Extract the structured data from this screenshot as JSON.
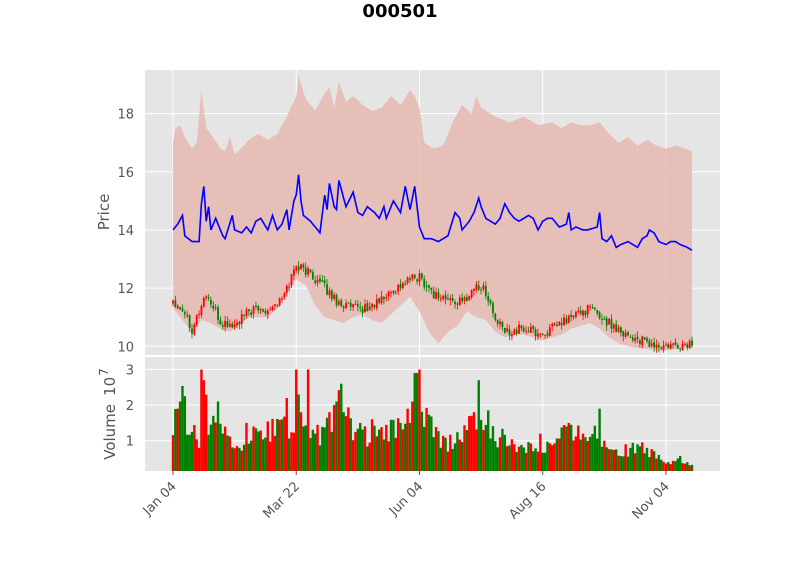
{
  "chart_data": {
    "type": "candlestick",
    "title": "000501",
    "xlabel": "",
    "price_panel": {
      "ylabel": "Price",
      "ylim": [
        9.7,
        19.5
      ],
      "yticks": [
        "10",
        "12",
        "14",
        "16",
        "18"
      ],
      "grid": true
    },
    "volume_panel": {
      "ylabel": "Volume",
      "scale_label": "10",
      "scale_exponent": "7",
      "ylim": [
        0.15,
        3.35
      ],
      "yticks": [
        "1",
        "2",
        "3"
      ],
      "grid": true
    },
    "x_tick_labels": [
      "Jan 04",
      "Mar 22",
      "Jun 04",
      "Aug 16",
      "Nov 04"
    ],
    "x_tick_index": [
      0,
      52,
      104,
      156,
      208
    ],
    "colors": {
      "up": "#ff0000",
      "down": "#008000",
      "line": "#0000ff",
      "band": "#e8b9b1",
      "axes_bg": "#e5e5e5",
      "grid": "#ffffff"
    },
    "price_anchors": [
      [
        0,
        11.6
      ],
      [
        5,
        11.2
      ],
      [
        8,
        10.6
      ],
      [
        14,
        11.8
      ],
      [
        20,
        10.8
      ],
      [
        26,
        10.7
      ],
      [
        32,
        11.2
      ],
      [
        40,
        11.3
      ],
      [
        46,
        11.6
      ],
      [
        52,
        12.8
      ],
      [
        58,
        12.5
      ],
      [
        64,
        12.0
      ],
      [
        70,
        11.5
      ],
      [
        76,
        11.3
      ],
      [
        82,
        11.3
      ],
      [
        88,
        11.6
      ],
      [
        94,
        12.0
      ],
      [
        100,
        12.3
      ],
      [
        104,
        12.4
      ],
      [
        110,
        11.8
      ],
      [
        116,
        11.6
      ],
      [
        122,
        11.5
      ],
      [
        128,
        12.1
      ],
      [
        132,
        11.9
      ],
      [
        136,
        10.9
      ],
      [
        140,
        10.5
      ],
      [
        148,
        10.6
      ],
      [
        156,
        10.4
      ],
      [
        164,
        10.8
      ],
      [
        170,
        11.1
      ],
      [
        176,
        11.3
      ],
      [
        182,
        10.9
      ],
      [
        188,
        10.6
      ],
      [
        194,
        10.3
      ],
      [
        200,
        10.1
      ],
      [
        206,
        9.95
      ],
      [
        214,
        10.0
      ],
      [
        219,
        10.1
      ]
    ],
    "volume_anchors": [
      [
        0,
        1.5
      ],
      [
        4,
        2.0
      ],
      [
        8,
        1.3
      ],
      [
        11,
        1.0
      ],
      [
        13,
        2.7
      ],
      [
        15,
        1.5
      ],
      [
        20,
        1.2
      ],
      [
        26,
        0.9
      ],
      [
        34,
        1.1
      ],
      [
        40,
        1.2
      ],
      [
        46,
        1.6
      ],
      [
        50,
        1.0
      ],
      [
        52,
        2.2
      ],
      [
        56,
        1.3
      ],
      [
        62,
        1.1
      ],
      [
        66,
        1.4
      ],
      [
        70,
        1.9
      ],
      [
        74,
        1.5
      ],
      [
        80,
        1.1
      ],
      [
        88,
        1.1
      ],
      [
        94,
        1.3
      ],
      [
        100,
        1.7
      ],
      [
        104,
        2.0
      ],
      [
        110,
        1.2
      ],
      [
        116,
        0.9
      ],
      [
        122,
        1.1
      ],
      [
        128,
        1.5
      ],
      [
        132,
        1.7
      ],
      [
        136,
        1.2
      ],
      [
        142,
        0.9
      ],
      [
        150,
        0.9
      ],
      [
        156,
        0.8
      ],
      [
        162,
        1.0
      ],
      [
        166,
        1.3
      ],
      [
        170,
        1.1
      ],
      [
        176,
        1.4
      ],
      [
        182,
        0.9
      ],
      [
        190,
        0.7
      ],
      [
        196,
        0.8
      ],
      [
        202,
        0.6
      ],
      [
        208,
        0.5
      ],
      [
        214,
        0.45
      ],
      [
        219,
        0.4
      ]
    ],
    "volume_spikes": [
      [
        2,
        1.9
      ],
      [
        3,
        2.1
      ],
      [
        12,
        3.0
      ],
      [
        13,
        2.7
      ],
      [
        19,
        2.1
      ],
      [
        21,
        1.2
      ],
      [
        31,
        1.5
      ],
      [
        46,
        1.6
      ],
      [
        48,
        2.2
      ],
      [
        52,
        3.0
      ],
      [
        53,
        2.3
      ],
      [
        54,
        1.8
      ],
      [
        55,
        1.4
      ],
      [
        57,
        3.0
      ],
      [
        60,
        1.2
      ],
      [
        68,
        2.0
      ],
      [
        69,
        2.1
      ],
      [
        71,
        2.6
      ],
      [
        72,
        1.8
      ],
      [
        79,
        1.5
      ],
      [
        84,
        1.6
      ],
      [
        96,
        1.5
      ],
      [
        99,
        1.9
      ],
      [
        101,
        2.1
      ],
      [
        102,
        2.9
      ],
      [
        103,
        2.9
      ],
      [
        104,
        3.0
      ],
      [
        110,
        1.1
      ],
      [
        124,
        1.3
      ],
      [
        126,
        1.7
      ],
      [
        127,
        1.8
      ],
      [
        129,
        2.7
      ],
      [
        131,
        1.3
      ],
      [
        155,
        1.2
      ],
      [
        166,
        1.4
      ],
      [
        167,
        1.5
      ],
      [
        173,
        1.2
      ],
      [
        180,
        1.9
      ],
      [
        182,
        1.0
      ],
      [
        193,
        0.8
      ],
      [
        196,
        0.9
      ],
      [
        200,
        0.8
      ],
      [
        204,
        0.5
      ],
      [
        205,
        0.6
      ],
      [
        213,
        0.5
      ]
    ],
    "blue_line": {
      "anchors": [
        [
          0,
          14.0
        ],
        [
          2,
          14.2
        ],
        [
          4,
          14.5
        ],
        [
          5,
          13.8
        ],
        [
          8,
          13.6
        ],
        [
          11,
          13.6
        ],
        [
          12,
          14.9
        ],
        [
          13,
          15.5
        ],
        [
          14,
          14.3
        ],
        [
          15,
          14.8
        ],
        [
          16,
          14.0
        ],
        [
          18,
          14.4
        ],
        [
          21,
          13.8
        ],
        [
          22,
          13.7
        ],
        [
          25,
          14.5
        ],
        [
          26,
          14.0
        ],
        [
          29,
          13.9
        ],
        [
          31,
          14.1
        ],
        [
          33,
          13.9
        ],
        [
          35,
          14.3
        ],
        [
          37,
          14.4
        ],
        [
          40,
          14.0
        ],
        [
          42,
          14.5
        ],
        [
          44,
          14.0
        ],
        [
          46,
          14.2
        ],
        [
          48,
          14.7
        ],
        [
          49,
          14.0
        ],
        [
          51,
          15.0
        ],
        [
          52,
          15.2
        ],
        [
          53,
          15.9
        ],
        [
          54,
          15.0
        ],
        [
          55,
          14.5
        ],
        [
          58,
          14.3
        ],
        [
          62,
          13.9
        ],
        [
          64,
          15.2
        ],
        [
          65,
          14.7
        ],
        [
          66,
          15.6
        ],
        [
          68,
          14.8
        ],
        [
          69,
          14.7
        ],
        [
          70,
          15.7
        ],
        [
          72,
          15.1
        ],
        [
          73,
          14.8
        ],
        [
          76,
          15.3
        ],
        [
          78,
          14.6
        ],
        [
          80,
          14.5
        ],
        [
          82,
          14.8
        ],
        [
          85,
          14.6
        ],
        [
          87,
          14.4
        ],
        [
          89,
          14.8
        ],
        [
          90,
          14.4
        ],
        [
          93,
          15.0
        ],
        [
          96,
          14.6
        ],
        [
          98,
          15.5
        ],
        [
          100,
          14.7
        ],
        [
          102,
          15.5
        ],
        [
          104,
          14.1
        ],
        [
          106,
          13.7
        ],
        [
          109,
          13.7
        ],
        [
          112,
          13.6
        ],
        [
          116,
          13.8
        ],
        [
          119,
          14.6
        ],
        [
          121,
          14.4
        ],
        [
          122,
          14.0
        ],
        [
          125,
          14.3
        ],
        [
          127,
          14.6
        ],
        [
          129,
          15.1
        ],
        [
          130,
          14.8
        ],
        [
          132,
          14.4
        ],
        [
          134,
          14.3
        ],
        [
          136,
          14.2
        ],
        [
          138,
          14.4
        ],
        [
          140,
          14.9
        ],
        [
          142,
          14.6
        ],
        [
          144,
          14.4
        ],
        [
          146,
          14.3
        ],
        [
          150,
          14.5
        ],
        [
          152,
          14.4
        ],
        [
          154,
          14.0
        ],
        [
          156,
          14.3
        ],
        [
          158,
          14.4
        ],
        [
          160,
          14.4
        ],
        [
          163,
          14.1
        ],
        [
          166,
          14.2
        ],
        [
          167,
          14.6
        ],
        [
          168,
          14.0
        ],
        [
          170,
          14.1
        ],
        [
          173,
          14.0
        ],
        [
          175,
          14.0
        ],
        [
          179,
          14.1
        ],
        [
          180,
          14.6
        ],
        [
          181,
          13.7
        ],
        [
          183,
          13.6
        ],
        [
          185,
          13.8
        ],
        [
          187,
          13.4
        ],
        [
          189,
          13.5
        ],
        [
          192,
          13.6
        ],
        [
          194,
          13.5
        ],
        [
          196,
          13.4
        ],
        [
          198,
          13.7
        ],
        [
          200,
          13.8
        ],
        [
          201,
          14.0
        ],
        [
          203,
          13.9
        ],
        [
          205,
          13.6
        ],
        [
          208,
          13.5
        ],
        [
          210,
          13.6
        ],
        [
          212,
          13.6
        ],
        [
          214,
          13.5
        ],
        [
          217,
          13.4
        ],
        [
          219,
          13.3
        ]
      ]
    },
    "band": {
      "upper": [
        [
          0,
          17.0
        ],
        [
          1,
          17.5
        ],
        [
          3,
          17.6
        ],
        [
          5,
          17.2
        ],
        [
          8,
          16.8
        ],
        [
          10,
          17.0
        ],
        [
          12,
          18.8
        ],
        [
          14,
          17.5
        ],
        [
          16,
          17.3
        ],
        [
          20,
          16.8
        ],
        [
          22,
          16.7
        ],
        [
          24,
          17.2
        ],
        [
          26,
          16.6
        ],
        [
          30,
          16.9
        ],
        [
          32,
          17.1
        ],
        [
          36,
          17.3
        ],
        [
          40,
          17.1
        ],
        [
          44,
          17.3
        ],
        [
          48,
          17.9
        ],
        [
          52,
          18.6
        ],
        [
          53,
          19.3
        ],
        [
          56,
          18.5
        ],
        [
          60,
          18.1
        ],
        [
          64,
          18.7
        ],
        [
          66,
          18.9
        ],
        [
          68,
          18.2
        ],
        [
          70,
          19.1
        ],
        [
          73,
          18.4
        ],
        [
          76,
          18.6
        ],
        [
          80,
          18.3
        ],
        [
          84,
          18.1
        ],
        [
          88,
          18.2
        ],
        [
          92,
          18.6
        ],
        [
          96,
          18.3
        ],
        [
          100,
          18.8
        ],
        [
          102,
          18.6
        ],
        [
          104,
          18.2
        ],
        [
          106,
          17.0
        ],
        [
          110,
          16.8
        ],
        [
          114,
          16.9
        ],
        [
          118,
          17.7
        ],
        [
          122,
          18.3
        ],
        [
          126,
          18.0
        ],
        [
          128,
          18.6
        ],
        [
          130,
          18.2
        ],
        [
          136,
          17.9
        ],
        [
          142,
          17.7
        ],
        [
          148,
          17.9
        ],
        [
          154,
          17.6
        ],
        [
          160,
          17.7
        ],
        [
          164,
          17.5
        ],
        [
          168,
          17.7
        ],
        [
          172,
          17.6
        ],
        [
          176,
          17.6
        ],
        [
          180,
          17.7
        ],
        [
          184,
          17.3
        ],
        [
          188,
          17.0
        ],
        [
          192,
          17.2
        ],
        [
          196,
          16.9
        ],
        [
          200,
          17.1
        ],
        [
          204,
          16.9
        ],
        [
          208,
          16.8
        ],
        [
          212,
          16.9
        ],
        [
          216,
          16.8
        ],
        [
          219,
          16.7
        ]
      ],
      "lower": [
        [
          0,
          11.3
        ],
        [
          4,
          10.9
        ],
        [
          8,
          10.5
        ],
        [
          12,
          10.9
        ],
        [
          16,
          10.8
        ],
        [
          20,
          10.6
        ],
        [
          24,
          10.5
        ],
        [
          28,
          10.7
        ],
        [
          32,
          11.0
        ],
        [
          36,
          11.0
        ],
        [
          40,
          11.0
        ],
        [
          44,
          11.3
        ],
        [
          48,
          11.8
        ],
        [
          52,
          12.3
        ],
        [
          56,
          12.1
        ],
        [
          60,
          11.4
        ],
        [
          64,
          11.0
        ],
        [
          68,
          10.9
        ],
        [
          72,
          10.8
        ],
        [
          76,
          11.0
        ],
        [
          80,
          11.1
        ],
        [
          84,
          10.9
        ],
        [
          88,
          10.8
        ],
        [
          92,
          11.1
        ],
        [
          96,
          11.4
        ],
        [
          100,
          11.7
        ],
        [
          104,
          11.2
        ],
        [
          108,
          10.5
        ],
        [
          112,
          10.1
        ],
        [
          116,
          10.5
        ],
        [
          120,
          10.7
        ],
        [
          124,
          11.2
        ],
        [
          128,
          11.0
        ],
        [
          132,
          10.9
        ],
        [
          136,
          10.5
        ],
        [
          140,
          10.3
        ],
        [
          144,
          10.4
        ],
        [
          148,
          10.4
        ],
        [
          152,
          10.3
        ],
        [
          156,
          10.2
        ],
        [
          160,
          10.3
        ],
        [
          164,
          10.4
        ],
        [
          168,
          10.6
        ],
        [
          172,
          10.7
        ],
        [
          176,
          10.8
        ],
        [
          180,
          10.6
        ],
        [
          184,
          10.3
        ],
        [
          188,
          10.1
        ],
        [
          192,
          10.0
        ],
        [
          196,
          9.95
        ],
        [
          200,
          9.9
        ],
        [
          204,
          9.85
        ],
        [
          208,
          9.85
        ],
        [
          212,
          9.9
        ],
        [
          216,
          9.95
        ],
        [
          219,
          9.95
        ]
      ]
    }
  }
}
